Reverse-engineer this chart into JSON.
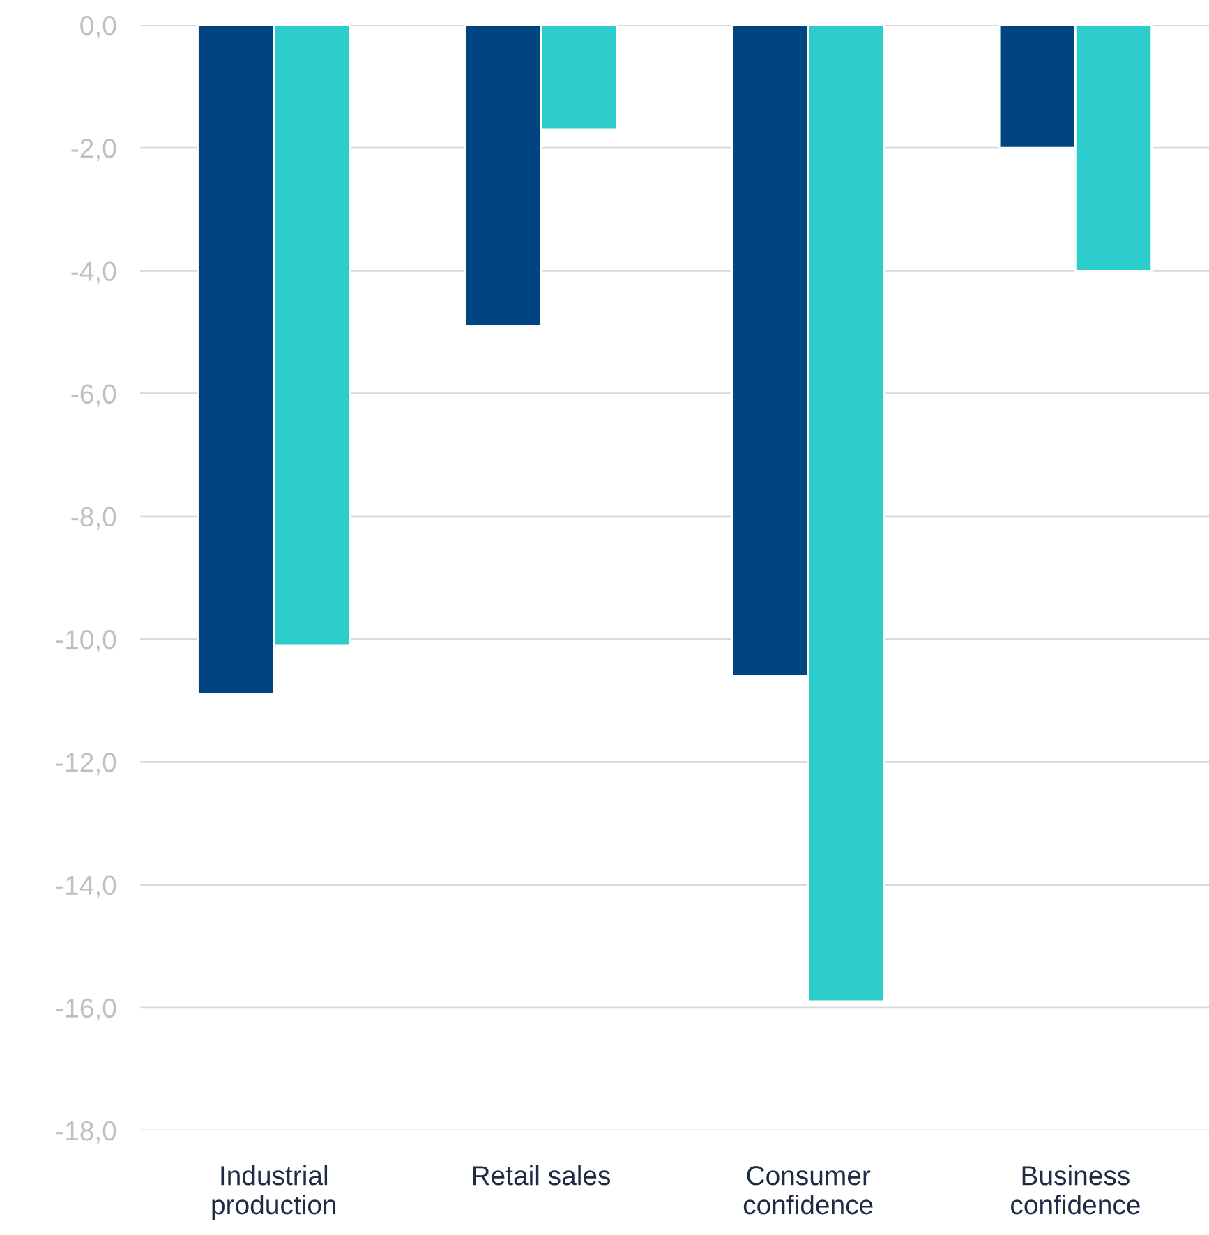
{
  "chart_data": {
    "type": "bar",
    "categories": [
      "Industrial\nproduction",
      "Retail sales",
      "Consumer\nconfidence",
      "Business\nconfidence"
    ],
    "series": [
      {
        "color": "#004481",
        "values": [
          -10.9,
          -4.9,
          -10.6,
          -2.0
        ]
      },
      {
        "color": "#2dcccd",
        "values": [
          -10.1,
          -1.7,
          -15.9,
          -4.0
        ]
      }
    ],
    "ylim": [
      -18,
      0
    ],
    "yticks": [
      {
        "value": -18,
        "label": "-18,0"
      },
      {
        "value": -16,
        "label": "-16,0"
      },
      {
        "value": -14,
        "label": "-14,0"
      },
      {
        "value": -12,
        "label": "-12,0"
      },
      {
        "value": -10,
        "label": "-10,0"
      },
      {
        "value": -8,
        "label": "-8,0"
      },
      {
        "value": -6,
        "label": "-6,0"
      },
      {
        "value": -4,
        "label": "-4,0"
      },
      {
        "value": -2,
        "label": "-2,0"
      },
      {
        "value": 0,
        "label": "0,0"
      }
    ],
    "grid": "y",
    "legend": false
  }
}
